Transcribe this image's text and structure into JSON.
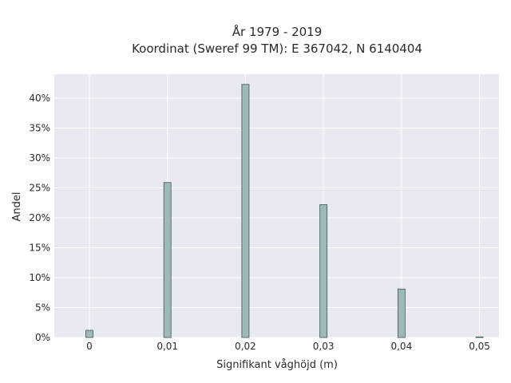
{
  "chart_data": {
    "type": "bar",
    "title_lines": [
      "År 1979 - 2019",
      "Koordinat (Sweref 99 TM): E 367042, N 6140404"
    ],
    "xlabel": "Signifikant våghöjd (m)",
    "ylabel": "Andel",
    "x": [
      0,
      0.01,
      0.02,
      0.03,
      0.04,
      0.05
    ],
    "values": [
      1.2,
      25.9,
      42.3,
      22.2,
      8.1,
      0.1
    ],
    "xlim": [
      -0.0045,
      0.0525
    ],
    "ylim": [
      0,
      44
    ],
    "xticks": [
      0,
      0.01,
      0.02,
      0.03,
      0.04,
      0.05
    ],
    "xtick_labels": [
      "0",
      "0,01",
      "0,02",
      "0,03",
      "0,04",
      "0,05"
    ],
    "yticks": [
      0,
      5,
      10,
      15,
      20,
      25,
      30,
      35,
      40
    ],
    "ytick_labels": [
      "0%",
      "5%",
      "10%",
      "15%",
      "20%",
      "25%",
      "30%",
      "35%",
      "40%"
    ],
    "grid": true,
    "legend": "none",
    "colors": {
      "bar_fill": "#9fb8b8",
      "bar_stroke": "#3f5656",
      "plot_bg": "#e8e9f1",
      "grid": "#ffffff"
    }
  }
}
